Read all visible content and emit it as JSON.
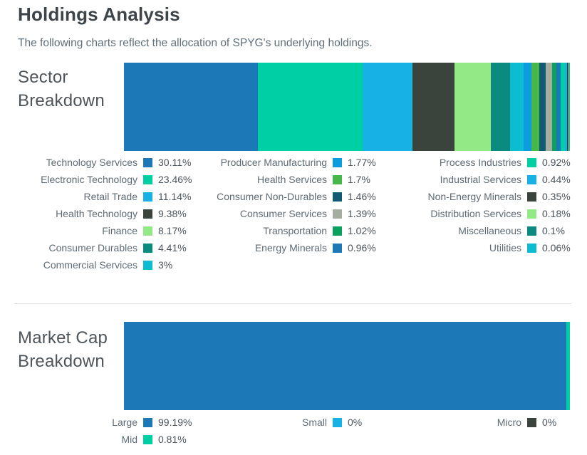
{
  "page": {
    "title": "Holdings Analysis",
    "subtitle": "The following charts reflect the allocation of SPYG's underlying holdings."
  },
  "chart_data": [
    {
      "id": "sector",
      "type": "bar",
      "variant": "horizontal-stacked-single-bar",
      "title": "Sector Breakdown",
      "unit": "%",
      "xlim": [
        0,
        100
      ],
      "legend_position": "below-in-three-columns",
      "segments": [
        {
          "label": "Technology Services",
          "value": 30.11,
          "display": "30.11%",
          "color": "#1d78b7"
        },
        {
          "label": "Electronic Technology",
          "value": 23.46,
          "display": "23.46%",
          "color": "#00cfa3"
        },
        {
          "label": "Retail Trade",
          "value": 11.14,
          "display": "11.14%",
          "color": "#17b1e6"
        },
        {
          "label": "Health Technology",
          "value": 9.38,
          "display": "9.38%",
          "color": "#3b443c"
        },
        {
          "label": "Finance",
          "value": 8.17,
          "display": "8.17%",
          "color": "#92e985"
        },
        {
          "label": "Consumer Durables",
          "value": 4.41,
          "display": "4.41%",
          "color": "#0b8b80"
        },
        {
          "label": "Commercial Services",
          "value": 3,
          "display": "3%",
          "color": "#0ebcd2"
        },
        {
          "label": "Producer Manufacturing",
          "value": 1.77,
          "display": "1.77%",
          "color": "#0c9edc"
        },
        {
          "label": "Health Services",
          "value": 1.7,
          "display": "1.7%",
          "color": "#48b74a"
        },
        {
          "label": "Consumer Non-Durables",
          "value": 1.46,
          "display": "1.46%",
          "color": "#115a74"
        },
        {
          "label": "Consumer Services",
          "value": 1.39,
          "display": "1.39%",
          "color": "#a5aca0"
        },
        {
          "label": "Transportation",
          "value": 1.02,
          "display": "1.02%",
          "color": "#0aa05d"
        },
        {
          "label": "Energy Minerals",
          "value": 0.96,
          "display": "0.96%",
          "color": "#1d78b7"
        },
        {
          "label": "Process Industries",
          "value": 0.92,
          "display": "0.92%",
          "color": "#00cfa3"
        },
        {
          "label": "Industrial Services",
          "value": 0.44,
          "display": "0.44%",
          "color": "#17b1e6"
        },
        {
          "label": "Non-Energy Minerals",
          "value": 0.35,
          "display": "0.35%",
          "color": "#3b443c"
        },
        {
          "label": "Distribution Services",
          "value": 0.18,
          "display": "0.18%",
          "color": "#92e985"
        },
        {
          "label": "Miscellaneous",
          "value": 0.1,
          "display": "0.1%",
          "color": "#0b8b80"
        },
        {
          "label": "Utilities",
          "value": 0.06,
          "display": "0.06%",
          "color": "#0ebcd2"
        }
      ],
      "legend_columns": [
        [
          0,
          1,
          2,
          3,
          4,
          5,
          6
        ],
        [
          7,
          8,
          9,
          10,
          11,
          12
        ],
        [
          13,
          14,
          15,
          16,
          17,
          18
        ]
      ]
    },
    {
      "id": "market-cap",
      "type": "bar",
      "variant": "horizontal-stacked-single-bar",
      "title": "Market Cap Breakdown",
      "unit": "%",
      "xlim": [
        0,
        100
      ],
      "legend_position": "below-in-three-columns",
      "segments": [
        {
          "label": "Large",
          "value": 99.19,
          "display": "99.19%",
          "color": "#1d78b7"
        },
        {
          "label": "Mid",
          "value": 0.81,
          "display": "0.81%",
          "color": "#00cfa3"
        },
        {
          "label": "Small",
          "value": 0,
          "display": "0%",
          "color": "#17b1e6"
        },
        {
          "label": "Micro",
          "value": 0,
          "display": "0%",
          "color": "#3b443c"
        }
      ],
      "legend_columns": [
        [
          0,
          1
        ],
        [
          2
        ],
        [
          3
        ]
      ]
    }
  ]
}
